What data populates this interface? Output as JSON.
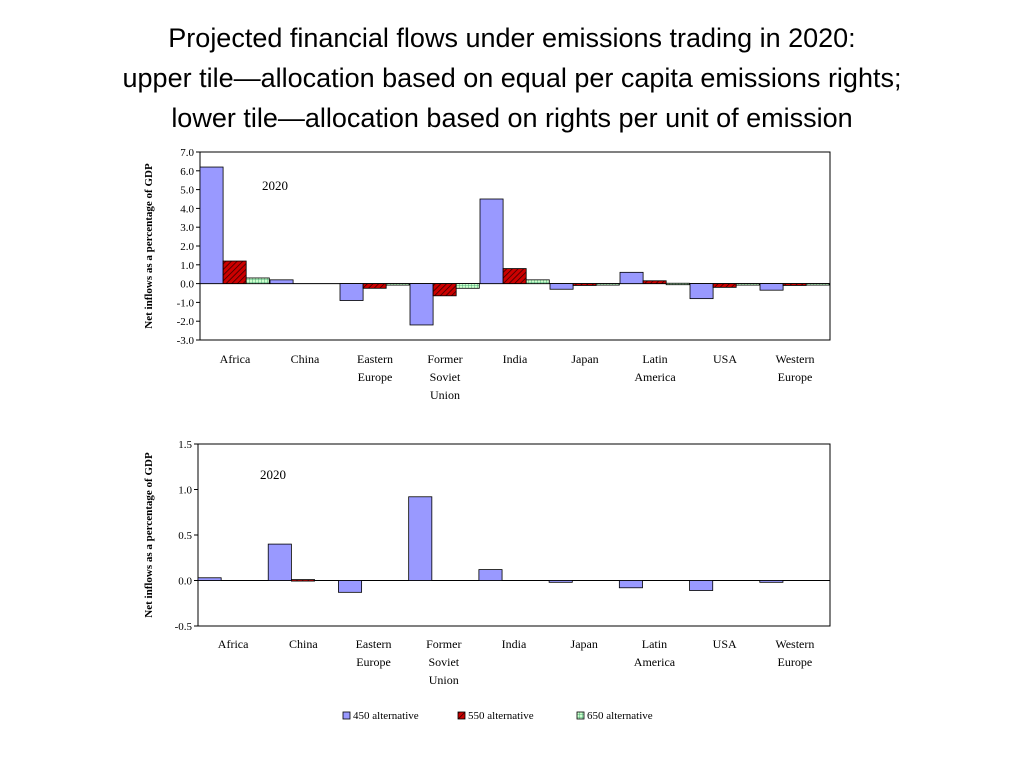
{
  "title": {
    "line1": "Projected financial flows under emissions trading in 2020:",
    "line2": "upper tile—allocation based on equal per capita emissions rights;",
    "line3": "lower tile—allocation based on rights per unit of emission"
  },
  "colors": {
    "s450": "#9999ff",
    "s550": "#cc0000",
    "s650": "#ccffcc"
  },
  "chart_data": [
    {
      "type": "bar",
      "annotation": "2020",
      "ylabel": "Net inflows as a percentage of GDP",
      "ylim": [
        -3.0,
        7.0
      ],
      "yticks": [
        7.0,
        6.0,
        5.0,
        4.0,
        3.0,
        2.0,
        1.0,
        0.0,
        -1.0,
        -2.0,
        -3.0
      ],
      "ytick_labels": [
        "7.0",
        "6.0",
        "5.0",
        "4.0",
        "3.0",
        "2.0",
        "1.0",
        "0.0",
        "-1.0",
        "-2.0",
        "-3.0"
      ],
      "categories": [
        [
          "Africa"
        ],
        [
          "China"
        ],
        [
          "Eastern",
          "Europe"
        ],
        [
          "Former",
          "Soviet",
          "Union"
        ],
        [
          "India"
        ],
        [
          "Japan"
        ],
        [
          "Latin",
          "America"
        ],
        [
          "USA"
        ],
        [
          "Western",
          "Europe"
        ]
      ],
      "series": [
        {
          "name": "450 alternative",
          "values": [
            6.2,
            0.2,
            -0.9,
            -2.2,
            4.5,
            -0.3,
            0.6,
            -0.8,
            -0.35
          ]
        },
        {
          "name": "550 alternative",
          "values": [
            1.2,
            0.0,
            -0.25,
            -0.65,
            0.8,
            -0.1,
            0.15,
            -0.2,
            -0.1
          ]
        },
        {
          "name": "650 alternative",
          "values": [
            0.3,
            0.0,
            -0.05,
            -0.25,
            0.2,
            -0.05,
            0.02,
            -0.05,
            -0.05
          ]
        }
      ]
    },
    {
      "type": "bar",
      "annotation": "2020",
      "ylabel": "Net inflows as a percentage of GDP",
      "ylim": [
        -0.5,
        1.5
      ],
      "yticks": [
        1.5,
        1.0,
        0.5,
        0.0,
        -0.5
      ],
      "ytick_labels": [
        "1.5",
        "1.0",
        "0.5",
        "0.0",
        "-0.5"
      ],
      "categories": [
        [
          "Africa"
        ],
        [
          "China"
        ],
        [
          "Eastern",
          "Europe"
        ],
        [
          "Former",
          "Soviet",
          "Union"
        ],
        [
          "India"
        ],
        [
          "Japan"
        ],
        [
          "Latin",
          "America"
        ],
        [
          "USA"
        ],
        [
          "Western",
          "Europe"
        ]
      ],
      "series": [
        {
          "name": "450 alternative",
          "values": [
            0.03,
            0.4,
            -0.13,
            0.92,
            0.12,
            -0.02,
            -0.08,
            -0.11,
            -0.02
          ]
        },
        {
          "name": "550 alternative",
          "values": [
            0.0,
            0.01,
            0.0,
            0.0,
            0.0,
            0.0,
            0.0,
            0.0,
            0.0
          ]
        },
        {
          "name": "650 alternative",
          "values": [
            0.0,
            0.0,
            0.0,
            0.0,
            0.0,
            0.0,
            0.0,
            0.0,
            0.0
          ]
        }
      ]
    }
  ],
  "legend": {
    "items": [
      "450 alternative",
      "550 alternative",
      "650 alternative"
    ]
  }
}
